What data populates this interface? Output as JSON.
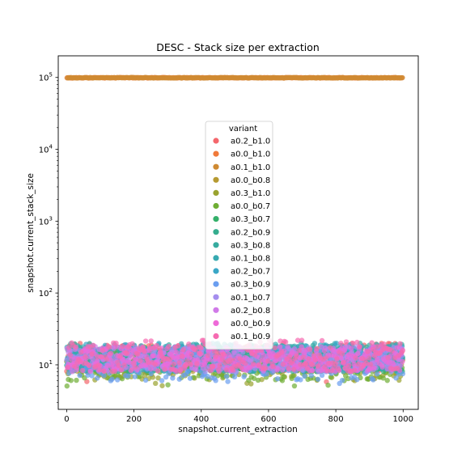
{
  "chart_data": {
    "type": "scatter",
    "title": "DESC - Stack size per extraction",
    "xlabel": "snapshot.current_extraction",
    "ylabel": "snapshot.current_stack_size",
    "xlim": [
      -25,
      1045
    ],
    "ylim": [
      2.4,
      200000
    ],
    "y_scale": "log",
    "x_ticks": [
      0,
      200,
      400,
      600,
      800,
      1000
    ],
    "y_ticks": [
      {
        "value": 10,
        "base": "10",
        "exp": "1"
      },
      {
        "value": 100,
        "base": "10",
        "exp": "2"
      },
      {
        "value": 1000,
        "base": "10",
        "exp": "3"
      },
      {
        "value": 10000,
        "base": "10",
        "exp": "4"
      },
      {
        "value": 100000,
        "base": "10",
        "exp": "5"
      }
    ],
    "grid": false,
    "legend": {
      "title": "variant",
      "placement": "center"
    },
    "x_range": [
      0,
      999
    ],
    "series": [
      {
        "name": "a0.2_b1.0",
        "color": "#f4676c",
        "typical_range": [
          8,
          20
        ],
        "min": 4
      },
      {
        "name": "a0.0_b1.0",
        "color": "#f07a3a",
        "typical_range": [
          98000,
          100000
        ]
      },
      {
        "name": "a0.1_b1.0",
        "color": "#cf8a32",
        "typical_range": [
          98000,
          100000
        ]
      },
      {
        "name": "a0.0_b0.8",
        "color": "#b69a32",
        "typical_range": [
          8,
          18
        ]
      },
      {
        "name": "a0.3_b1.0",
        "color": "#9aa32f",
        "typical_range": [
          6,
          16
        ],
        "min": 5
      },
      {
        "name": "a0.0_b0.7",
        "color": "#6fae34",
        "typical_range": [
          6,
          14
        ],
        "min": 5
      },
      {
        "name": "a0.3_b0.7",
        "color": "#34b06a",
        "typical_range": [
          8,
          18
        ]
      },
      {
        "name": "a0.2_b0.9",
        "color": "#35ad8e",
        "typical_range": [
          8,
          18
        ]
      },
      {
        "name": "a0.3_b0.8",
        "color": "#36ab9f",
        "typical_range": [
          8,
          20
        ]
      },
      {
        "name": "a0.1_b0.8",
        "color": "#37aab1",
        "typical_range": [
          8,
          20
        ]
      },
      {
        "name": "a0.2_b0.7",
        "color": "#3aa7c6",
        "typical_range": [
          8,
          20
        ]
      },
      {
        "name": "a0.3_b0.9",
        "color": "#6a9ef0",
        "typical_range": [
          6,
          18
        ],
        "min": 5
      },
      {
        "name": "a0.1_b0.7",
        "color": "#a58eee",
        "typical_range": [
          8,
          18
        ]
      },
      {
        "name": "a0.2_b0.8",
        "color": "#d07ae8",
        "typical_range": [
          8,
          18
        ]
      },
      {
        "name": "a0.0_b0.9",
        "color": "#ee6ad8",
        "typical_range": [
          8,
          18
        ]
      },
      {
        "name": "a0.1_b0.9",
        "color": "#f66bb1",
        "typical_range": [
          8,
          22
        ]
      }
    ]
  }
}
